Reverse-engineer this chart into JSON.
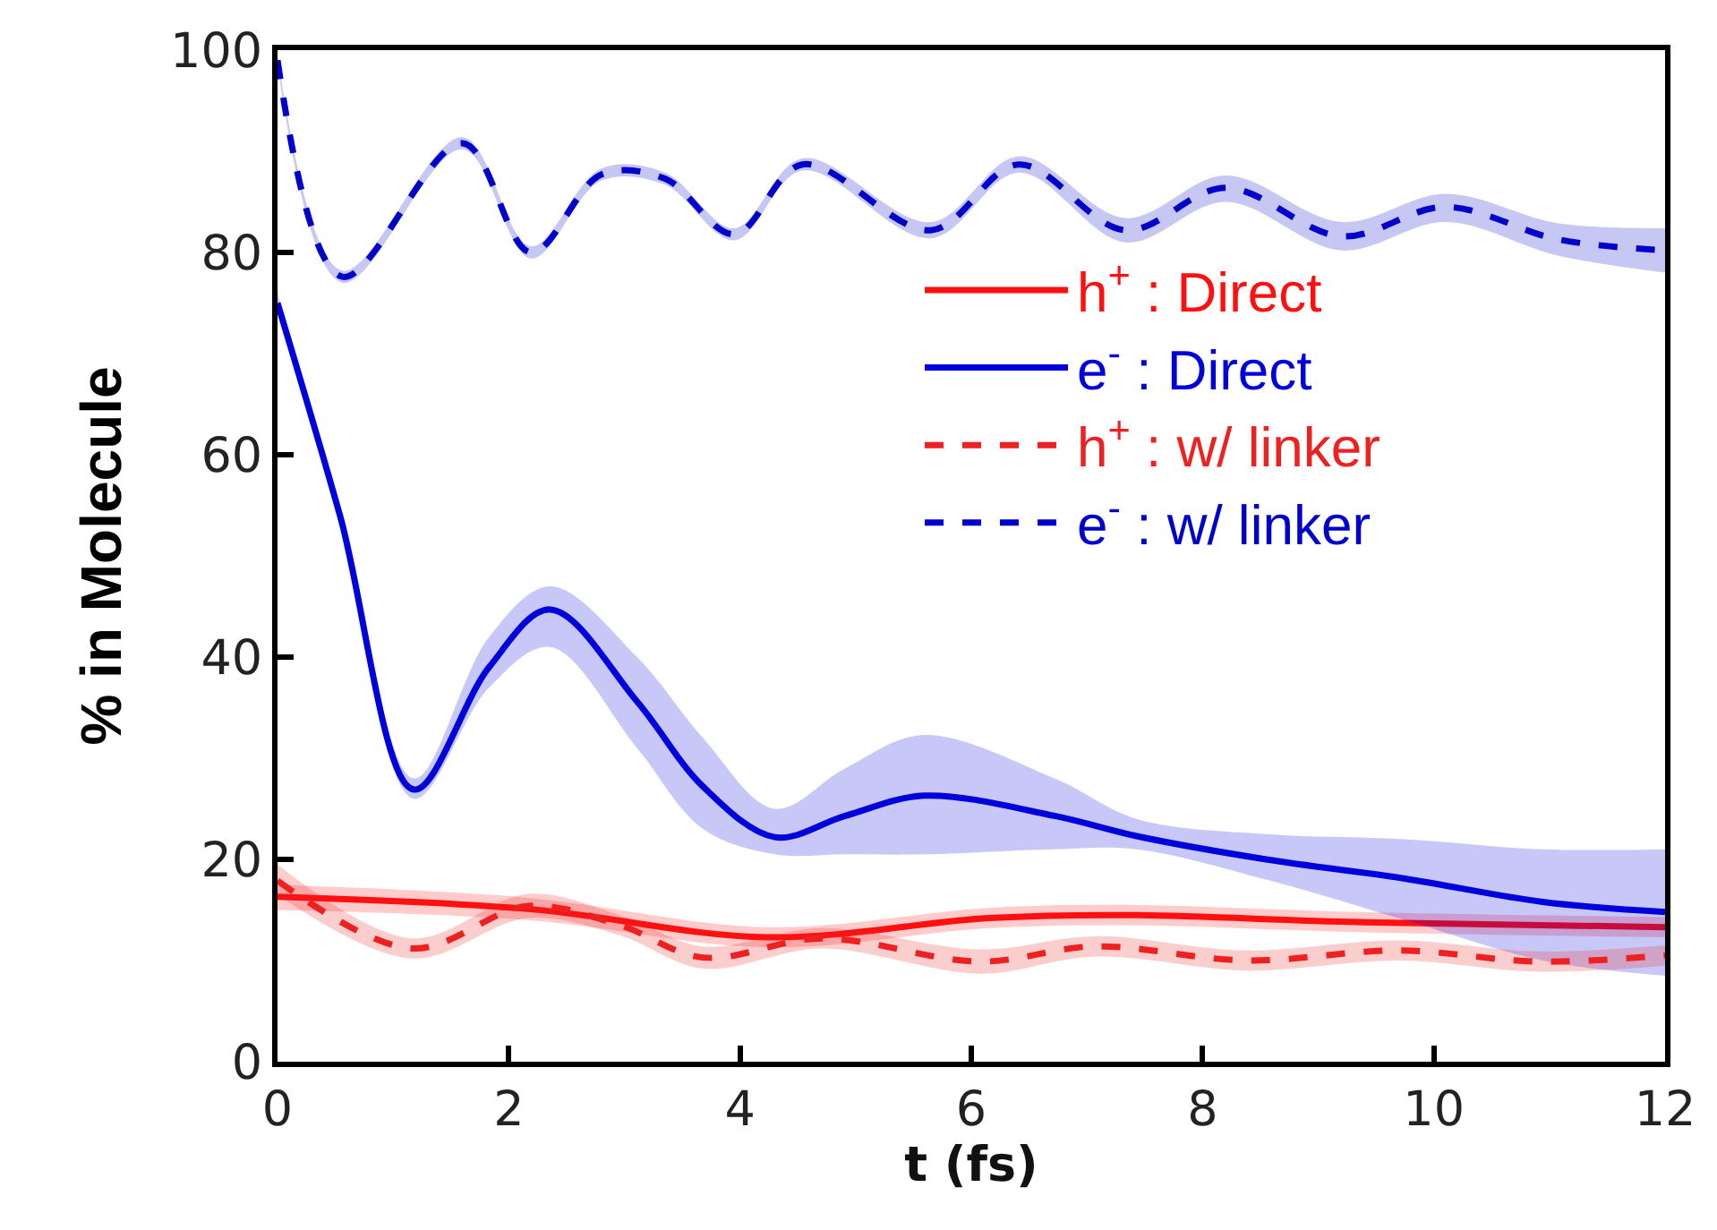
{
  "chart_data": {
    "type": "line",
    "xlabel": "t (fs)",
    "ylabel": "% in Molecule",
    "xlim": [
      0,
      12
    ],
    "xticks": [
      0,
      2,
      4,
      6,
      8,
      10,
      12
    ],
    "ylim": [
      0,
      100
    ],
    "yticks": [
      0,
      20,
      40,
      60,
      80,
      100
    ],
    "legend": "top right",
    "marker": "none",
    "series": [
      {
        "name": "h$^{+}$ : Direct",
        "color": "#ff1010",
        "line_style": "solid",
        "x": [
          0,
          2.17,
          4.24,
          6.15,
          7.3,
          9.35,
          12
        ],
        "values": [
          16.3,
          15.1,
          12.3,
          14.2,
          14.5,
          13.8,
          13.3
        ],
        "lower": [
          15,
          14,
          11.3,
          13.2,
          13.5,
          12.8,
          12.3
        ],
        "upper": [
          17.5,
          16.2,
          13.3,
          15.2,
          15.5,
          14.8,
          14.3
        ]
      },
      {
        "name": "e$^{-}$ : Direct",
        "color": "#0000dd",
        "line_style": "solid",
        "x": [
          0,
          0.54,
          1.18,
          1.83,
          2.36,
          3.11,
          3.68,
          4.3,
          4.91,
          5.59,
          6.72,
          7.43,
          8.55,
          9.75,
          10.94,
          12
        ],
        "values": [
          75,
          54,
          26.9,
          39,
          44.7,
          35.6,
          27.2,
          22.2,
          24.3,
          26.3,
          24.3,
          22.3,
          20,
          18.1,
          15.8,
          14.8
        ],
        "lower": [
          74,
          53,
          26,
          37,
          41,
          31,
          23,
          20.5,
          20.5,
          20.5,
          21,
          21,
          18,
          14,
          10,
          8.5
        ],
        "upper": [
          76,
          55,
          28,
          42,
          47,
          40,
          32,
          25,
          29,
          32.3,
          28,
          24,
          22.5,
          22,
          21,
          21
        ]
      },
      {
        "name": "h$^{+}$ : w/ linker",
        "color": "#ee2020",
        "line_style": "dashed",
        "x": [
          0,
          1.16,
          2.17,
          2.96,
          3.68,
          4.71,
          6.07,
          7.07,
          8.39,
          9.7,
          10.9,
          12
        ],
        "values": [
          17.9,
          11.2,
          15.4,
          13.5,
          10.3,
          12.2,
          9.9,
          11.4,
          10.0,
          11.0,
          9.9,
          10.5
        ],
        "lower": [
          16.5,
          10.2,
          14.2,
          12.5,
          9.2,
          11.2,
          8.7,
          10.4,
          9,
          10,
          8.9,
          9.5
        ],
        "upper": [
          19.5,
          12.2,
          16.6,
          14.5,
          11.4,
          13.2,
          11.1,
          12.4,
          11,
          12,
          10.9,
          11.5
        ]
      },
      {
        "name": "e$^{-}$ : w/ linker",
        "color": "#0000cc",
        "line_style": "dashed",
        "x": [
          0,
          0.56,
          1.6,
          2.19,
          2.8,
          3.35,
          3.95,
          4.54,
          5.65,
          6.41,
          7.33,
          8.2,
          9.2,
          10.1,
          11.07,
          12
        ],
        "values": [
          99,
          77.6,
          90.8,
          80,
          87.7,
          87.3,
          81.8,
          88.7,
          82.2,
          88.7,
          82.2,
          86.4,
          81.6,
          84.5,
          81.3,
          80.2
        ],
        "lower": [
          98.5,
          77,
          90.2,
          79.4,
          87.1,
          86.7,
          81.2,
          88.1,
          81.4,
          87.9,
          81,
          85,
          80.2,
          83,
          79.7,
          78
        ],
        "upper": [
          99.5,
          78.2,
          91.4,
          80.6,
          88.3,
          87.9,
          82.4,
          89.3,
          83,
          89.5,
          83.4,
          87.6,
          83,
          85.8,
          82.9,
          82.4
        ]
      }
    ]
  }
}
